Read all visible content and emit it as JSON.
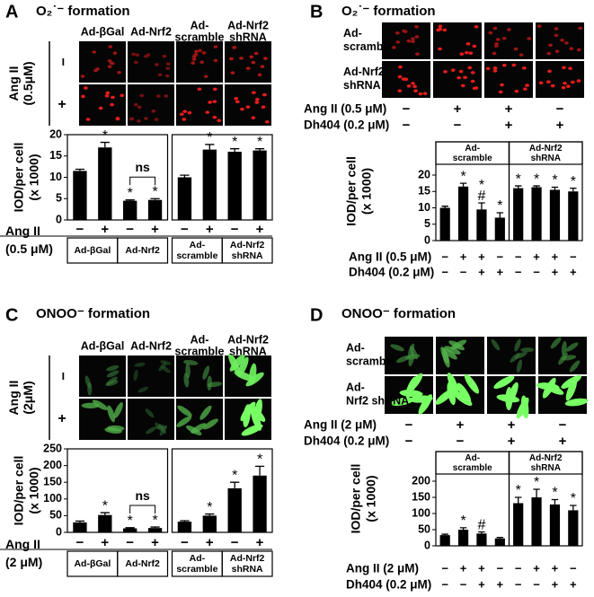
{
  "chart_data": [
    {
      "type": "bar",
      "panel_label": "A",
      "title": "O₂˙⁻ formation",
      "image_columns": [
        "Ad-βGal",
        "Ad-Nrf2",
        "Ad-\nscramble",
        "Ad-Nrf2\nshRNA"
      ],
      "image_row_title": "Ang II\n(0.5μM)",
      "image_rows": [
        "−",
        "+"
      ],
      "groups": [
        "Ad-βGal",
        "Ad-Nrf2",
        "Ad-\nscramble",
        "Ad-Nrf2\nshRNA"
      ],
      "categories": [
        "−",
        "+",
        "−",
        "+",
        "−",
        "+",
        "−",
        "+"
      ],
      "condition_label": "Ang II\n(0.5 μM)",
      "ylabel": "IOD/per cell\n(x 1000)",
      "ylim": [
        0,
        20
      ],
      "yticks": [
        0,
        5,
        10,
        15,
        20
      ],
      "values": [
        11.5,
        17,
        4.5,
        4.7,
        10,
        16.5,
        16,
        16.3
      ],
      "errors": [
        0.4,
        1.2,
        0.2,
        0.3,
        0.5,
        1.2,
        0.7,
        0.4
      ],
      "annotations": [
        null,
        "*",
        "*",
        "*",
        null,
        "*",
        "*",
        "*"
      ],
      "bracket_label": "ns",
      "color": "#000000"
    },
    {
      "type": "bar",
      "panel_label": "B",
      "title": "O₂˙⁻ formation",
      "image_rows": [
        "Ad-\nscramble",
        "Ad-Nrf2\nshRNA"
      ],
      "image_conditions": [
        {
          "label": "Ang II (0.5 μM)",
          "values": [
            "−",
            "+",
            "+",
            "−"
          ]
        },
        {
          "label": "Dh404 (0.2 μM)",
          "values": [
            "−",
            "−",
            "+",
            "+"
          ]
        }
      ],
      "groups": [
        "Ad-\nscramble",
        "Ad-Nrf2\nshRNA"
      ],
      "conditions": [
        {
          "label": "Ang II (0.5 μM)",
          "values": [
            "−",
            "+",
            "+",
            "−",
            "−",
            "+",
            "+",
            "−"
          ]
        },
        {
          "label": "Dh404 (0.2 μM)",
          "values": [
            "−",
            "−",
            "+",
            "+",
            "−",
            "−",
            "+",
            "+"
          ]
        }
      ],
      "ylabel": "IOD/per cell\n(x 1000)",
      "ylim": [
        0,
        20
      ],
      "yticks": [
        0,
        5,
        10,
        15,
        20
      ],
      "values": [
        10,
        16.5,
        9.5,
        7,
        16,
        16.3,
        15.5,
        15
      ],
      "errors": [
        0.5,
        1,
        2,
        1.5,
        0.7,
        0.4,
        0.8,
        1
      ],
      "annotations": [
        null,
        "*",
        "*\n#",
        "*",
        "*",
        "*",
        "*",
        "*"
      ],
      "color": "#000000"
    },
    {
      "type": "bar",
      "panel_label": "C",
      "title": "ONOO⁻ formation",
      "image_columns": [
        "Ad-βGal",
        "Ad-Nrf2",
        "Ad-\nscramble",
        "Ad-Nrf2\nshRNA"
      ],
      "image_row_title": "Ang II\n(2μM)",
      "image_rows": [
        "−",
        "+"
      ],
      "groups": [
        "Ad-βGal",
        "Ad-Nrf2",
        "Ad-\nscramble",
        "Ad-Nrf2\nshRNA"
      ],
      "categories": [
        "−",
        "+",
        "−",
        "+",
        "−",
        "+",
        "−",
        "+"
      ],
      "condition_label": "Ang II\n(2 μM)",
      "ylabel": "IOD/per cell\n(x 1000)",
      "ylim": [
        0,
        250
      ],
      "yticks": [
        0,
        50,
        100,
        150,
        200,
        250
      ],
      "values": [
        30,
        52,
        12,
        13,
        32,
        50,
        132,
        170
      ],
      "errors": [
        4,
        7,
        2,
        3,
        3,
        5,
        18,
        28
      ],
      "annotations": [
        null,
        "*",
        "*",
        "*",
        null,
        "*",
        "*",
        "*"
      ],
      "bracket_label": "ns",
      "color": "#000000"
    },
    {
      "type": "bar",
      "panel_label": "D",
      "title": "ONOO⁻ formation",
      "image_rows": [
        "Ad-\nscramble",
        "Ad-\nNrf2 shRNA"
      ],
      "image_conditions": [
        {
          "label": "Ang II (2 μM)",
          "values": [
            "−",
            "+",
            "+",
            "−"
          ]
        },
        {
          "label": "Dh404 (0.2 μM)",
          "values": [
            "−",
            "−",
            "+",
            "+"
          ]
        }
      ],
      "groups": [
        "Ad-\nscramble",
        "Ad-Nrf2\nshRNA"
      ],
      "conditions": [
        {
          "label": "Ang II (2 μM)",
          "values": [
            "−",
            "+",
            "+",
            "−",
            "−",
            "+",
            "+",
            "−"
          ]
        },
        {
          "label": "Dh404 (0.2 μM)",
          "values": [
            "−",
            "−",
            "+",
            "+",
            "−",
            "−",
            "+",
            "+"
          ]
        }
      ],
      "ylabel": "IOD/per cell\n(x 1000)",
      "ylim": [
        0,
        200
      ],
      "yticks": [
        0,
        50,
        100,
        150,
        200
      ],
      "values": [
        33,
        50,
        38,
        23,
        132,
        150,
        128,
        110
      ],
      "errors": [
        3,
        6,
        5,
        3,
        18,
        25,
        15,
        15
      ],
      "annotations": [
        null,
        "*",
        "#",
        null,
        "*",
        "*",
        "*",
        "*"
      ],
      "color": "#000000"
    }
  ]
}
